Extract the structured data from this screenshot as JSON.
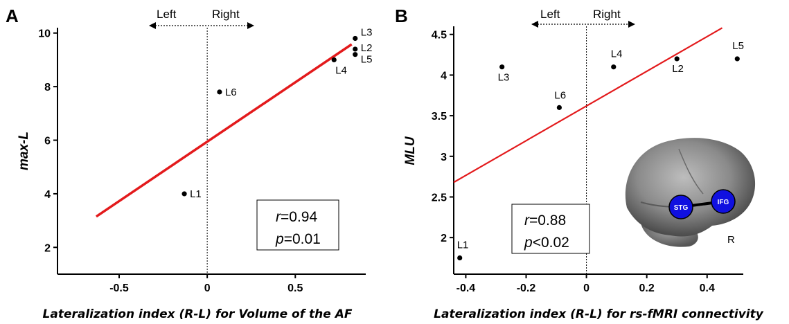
{
  "chart_data": [
    {
      "panel": "A",
      "type": "scatter",
      "xlabel": "Lateralization index (R-L) for Volume of the AF",
      "ylabel": "max-L",
      "xlim": [
        -0.85,
        0.9
      ],
      "ylim": [
        1.0,
        10.2
      ],
      "xticks": [
        "-0.5",
        "0",
        "0.5"
      ],
      "xtick_values": [
        -0.5,
        0,
        0.5
      ],
      "yticks": [
        "2",
        "4",
        "6",
        "8",
        "10"
      ],
      "ytick_values": [
        2,
        4,
        6,
        8,
        10
      ],
      "points": [
        {
          "label": "L1",
          "x": -0.13,
          "y": 4.0
        },
        {
          "label": "L6",
          "x": 0.07,
          "y": 7.8
        },
        {
          "label": "L4",
          "x": 0.72,
          "y": 9.0
        },
        {
          "label": "L5",
          "x": 0.84,
          "y": 9.2
        },
        {
          "label": "L2",
          "x": 0.84,
          "y": 9.4
        },
        {
          "label": "L3",
          "x": 0.84,
          "y": 9.8
        }
      ],
      "fit_line": {
        "x": [
          -0.63,
          0.82
        ],
        "y": [
          3.15,
          9.58
        ],
        "color": "#e31a1c"
      },
      "direction": {
        "left": "Left",
        "right": "Right"
      },
      "stats": {
        "r_symbol": "r",
        "r_value": "=0.94",
        "p_symbol": "p",
        "p_value": "=0.01"
      }
    },
    {
      "panel": "B",
      "type": "scatter",
      "xlabel": "Lateralization index (R-L) for rs-fMRI connectivity",
      "ylabel": "MLU",
      "xlim": [
        -0.44,
        0.52
      ],
      "ylim": [
        1.55,
        4.6
      ],
      "xticks": [
        "-0.4",
        "-0.2",
        "0",
        "0.2",
        "0.4"
      ],
      "xtick_values": [
        -0.4,
        -0.2,
        0,
        0.2,
        0.4
      ],
      "yticks": [
        "2",
        "2.5",
        "3",
        "3.5",
        "4",
        "4.5"
      ],
      "ytick_values": [
        2,
        2.5,
        3,
        3.5,
        4,
        4.5
      ],
      "points": [
        {
          "label": "L1",
          "x": -0.42,
          "y": 1.75
        },
        {
          "label": "L3",
          "x": -0.28,
          "y": 4.1
        },
        {
          "label": "L6",
          "x": -0.09,
          "y": 3.6
        },
        {
          "label": "L4",
          "x": 0.09,
          "y": 4.1
        },
        {
          "label": "L2",
          "x": 0.3,
          "y": 4.2
        },
        {
          "label": "L5",
          "x": 0.5,
          "y": 4.2
        }
      ],
      "fit_line": {
        "x": [
          -0.44,
          0.45
        ],
        "y": [
          2.68,
          4.58
        ],
        "color": "#e31a1c"
      },
      "direction": {
        "left": "Left",
        "right": "Right"
      },
      "stats": {
        "r_symbol": "r",
        "r_value": "=0.88",
        "p_symbol": "p",
        "p_value": "<0.02"
      },
      "inset": {
        "node_left": "STG",
        "node_right": "IFG",
        "hemisphere": "R",
        "node_color": "#1010e0"
      }
    }
  ]
}
